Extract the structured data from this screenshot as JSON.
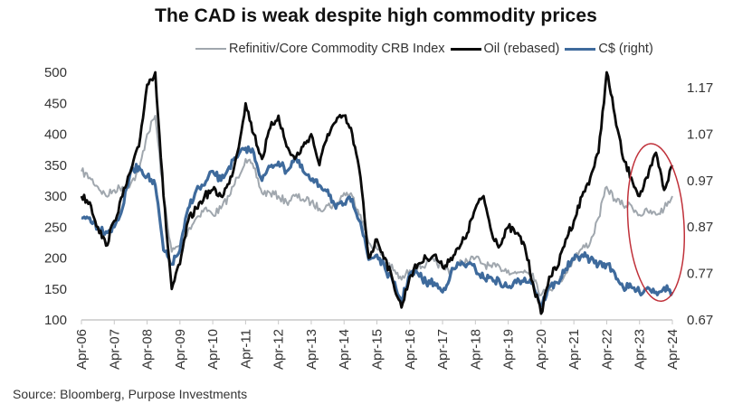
{
  "chart_data": {
    "type": "line",
    "title": "The CAD is weak despite high commodity prices",
    "source": "Source: Bloomberg, Purpose Investments",
    "legend_position": "top-right",
    "x_tick_labels": [
      "Apr-06",
      "Apr-07",
      "Apr-08",
      "Apr-09",
      "Apr-10",
      "Apr-11",
      "Apr-12",
      "Apr-13",
      "Apr-14",
      "Apr-15",
      "Apr-16",
      "Apr-17",
      "Apr-18",
      "Apr-19",
      "Apr-20",
      "Apr-21",
      "Apr-22",
      "Apr-23",
      "Apr-24"
    ],
    "x_range": [
      2006.25,
      2024.25
    ],
    "y_left": {
      "label": "",
      "ticks": [
        100,
        150,
        200,
        250,
        300,
        350,
        400,
        450,
        500
      ],
      "range": [
        100,
        500
      ]
    },
    "y_right": {
      "label": "",
      "ticks": [
        0.67,
        0.77,
        0.87,
        0.97,
        1.07,
        1.17
      ],
      "range": [
        0.67,
        1.17
      ]
    },
    "grid": false,
    "annotation": {
      "type": "ellipse",
      "color": "#c0313a",
      "description": "Red oval highlighting 2023-2024 divergence",
      "x_range": [
        2022.9,
        2024.6
      ],
      "y_left_range": [
        130,
        385
      ]
    },
    "series": [
      {
        "name": "Refinitiv/Core Commodity CRB Index",
        "axis": "left",
        "color": "#a0a7ae",
        "x": [
          2006.25,
          2006.5,
          2006.75,
          2007.0,
          2007.25,
          2007.5,
          2007.75,
          2008.0,
          2008.25,
          2008.5,
          2008.75,
          2009.0,
          2009.25,
          2009.5,
          2009.75,
          2010.0,
          2010.25,
          2010.5,
          2010.75,
          2011.0,
          2011.25,
          2011.5,
          2011.75,
          2012.0,
          2012.25,
          2012.5,
          2012.75,
          2013.0,
          2013.25,
          2013.5,
          2013.75,
          2014.0,
          2014.25,
          2014.5,
          2014.75,
          2015.0,
          2015.25,
          2015.5,
          2015.75,
          2016.0,
          2016.25,
          2016.5,
          2016.75,
          2017.0,
          2017.25,
          2017.5,
          2017.75,
          2018.0,
          2018.25,
          2018.5,
          2018.75,
          2019.0,
          2019.25,
          2019.5,
          2019.75,
          2020.0,
          2020.25,
          2020.5,
          2020.75,
          2021.0,
          2021.25,
          2021.5,
          2021.75,
          2022.0,
          2022.25,
          2022.5,
          2022.75,
          2023.0,
          2023.25,
          2023.5,
          2023.75,
          2024.0,
          2024.25
        ],
        "values": [
          340,
          330,
          315,
          300,
          310,
          315,
          320,
          340,
          400,
          430,
          300,
          210,
          220,
          245,
          265,
          280,
          270,
          280,
          300,
          330,
          360,
          345,
          305,
          305,
          300,
          290,
          300,
          295,
          290,
          280,
          285,
          285,
          305,
          300,
          270,
          225,
          215,
          200,
          180,
          165,
          180,
          185,
          190,
          195,
          185,
          180,
          190,
          195,
          200,
          190,
          185,
          185,
          180,
          175,
          180,
          175,
          140,
          150,
          160,
          175,
          200,
          215,
          225,
          265,
          315,
          295,
          285,
          285,
          270,
          275,
          270,
          280,
          300
        ]
      },
      {
        "name": "Oil (rebased)",
        "axis": "left",
        "color": "#0a0a0a",
        "x": [
          2006.25,
          2006.5,
          2006.75,
          2007.0,
          2007.25,
          2007.5,
          2007.75,
          2008.0,
          2008.25,
          2008.5,
          2008.75,
          2009.0,
          2009.25,
          2009.5,
          2009.75,
          2010.0,
          2010.25,
          2010.5,
          2010.75,
          2011.0,
          2011.25,
          2011.5,
          2011.75,
          2012.0,
          2012.25,
          2012.5,
          2012.75,
          2013.0,
          2013.25,
          2013.5,
          2013.75,
          2014.0,
          2014.25,
          2014.5,
          2014.75,
          2015.0,
          2015.25,
          2015.5,
          2015.75,
          2016.0,
          2016.25,
          2016.5,
          2016.75,
          2017.0,
          2017.25,
          2017.5,
          2017.75,
          2018.0,
          2018.25,
          2018.5,
          2018.75,
          2019.0,
          2019.25,
          2019.5,
          2019.75,
          2020.0,
          2020.25,
          2020.5,
          2020.75,
          2021.0,
          2021.25,
          2021.5,
          2021.75,
          2022.0,
          2022.25,
          2022.5,
          2022.75,
          2023.0,
          2023.25,
          2023.5,
          2023.75,
          2024.0,
          2024.25
        ],
        "values": [
          300,
          290,
          250,
          220,
          260,
          300,
          340,
          380,
          480,
          500,
          300,
          150,
          190,
          260,
          280,
          300,
          310,
          300,
          320,
          370,
          450,
          400,
          360,
          410,
          430,
          380,
          360,
          380,
          400,
          350,
          400,
          420,
          430,
          400,
          330,
          200,
          230,
          200,
          160,
          120,
          170,
          190,
          200,
          205,
          185,
          200,
          215,
          240,
          280,
          300,
          240,
          220,
          250,
          240,
          220,
          160,
          110,
          170,
          185,
          230,
          260,
          300,
          330,
          370,
          500,
          430,
          360,
          330,
          300,
          330,
          370,
          310,
          350
        ]
      },
      {
        "name": "C$ (right)",
        "axis": "right",
        "color": "#3e6a9c",
        "x": [
          2006.25,
          2006.5,
          2006.75,
          2007.0,
          2007.25,
          2007.5,
          2007.75,
          2008.0,
          2008.25,
          2008.5,
          2008.75,
          2009.0,
          2009.25,
          2009.5,
          2009.75,
          2010.0,
          2010.25,
          2010.5,
          2010.75,
          2011.0,
          2011.25,
          2011.5,
          2011.75,
          2012.0,
          2012.25,
          2012.5,
          2012.75,
          2013.0,
          2013.25,
          2013.5,
          2013.75,
          2014.0,
          2014.25,
          2014.5,
          2014.75,
          2015.0,
          2015.25,
          2015.5,
          2015.75,
          2016.0,
          2016.25,
          2016.5,
          2016.75,
          2017.0,
          2017.25,
          2017.5,
          2017.75,
          2018.0,
          2018.25,
          2018.5,
          2018.75,
          2019.0,
          2019.25,
          2019.5,
          2019.75,
          2020.0,
          2020.25,
          2020.5,
          2020.75,
          2021.0,
          2021.25,
          2021.5,
          2021.75,
          2022.0,
          2022.25,
          2022.5,
          2022.75,
          2023.0,
          2023.25,
          2023.5,
          2023.75,
          2024.0,
          2024.25
        ],
        "values": [
          0.89,
          0.89,
          0.87,
          0.86,
          0.87,
          0.91,
          0.99,
          1.0,
          0.98,
          0.96,
          0.82,
          0.79,
          0.82,
          0.91,
          0.95,
          0.96,
          0.99,
          0.97,
          1.0,
          1.02,
          1.04,
          1.03,
          0.97,
          1.0,
          1.01,
          0.99,
          1.02,
          0.99,
          0.97,
          0.96,
          0.95,
          0.91,
          0.92,
          0.93,
          0.88,
          0.8,
          0.81,
          0.78,
          0.75,
          0.71,
          0.77,
          0.77,
          0.75,
          0.75,
          0.73,
          0.77,
          0.79,
          0.79,
          0.78,
          0.76,
          0.76,
          0.75,
          0.74,
          0.75,
          0.76,
          0.75,
          0.7,
          0.74,
          0.75,
          0.78,
          0.8,
          0.81,
          0.8,
          0.79,
          0.79,
          0.77,
          0.74,
          0.74,
          0.73,
          0.74,
          0.73,
          0.74,
          0.73
        ]
      }
    ]
  }
}
